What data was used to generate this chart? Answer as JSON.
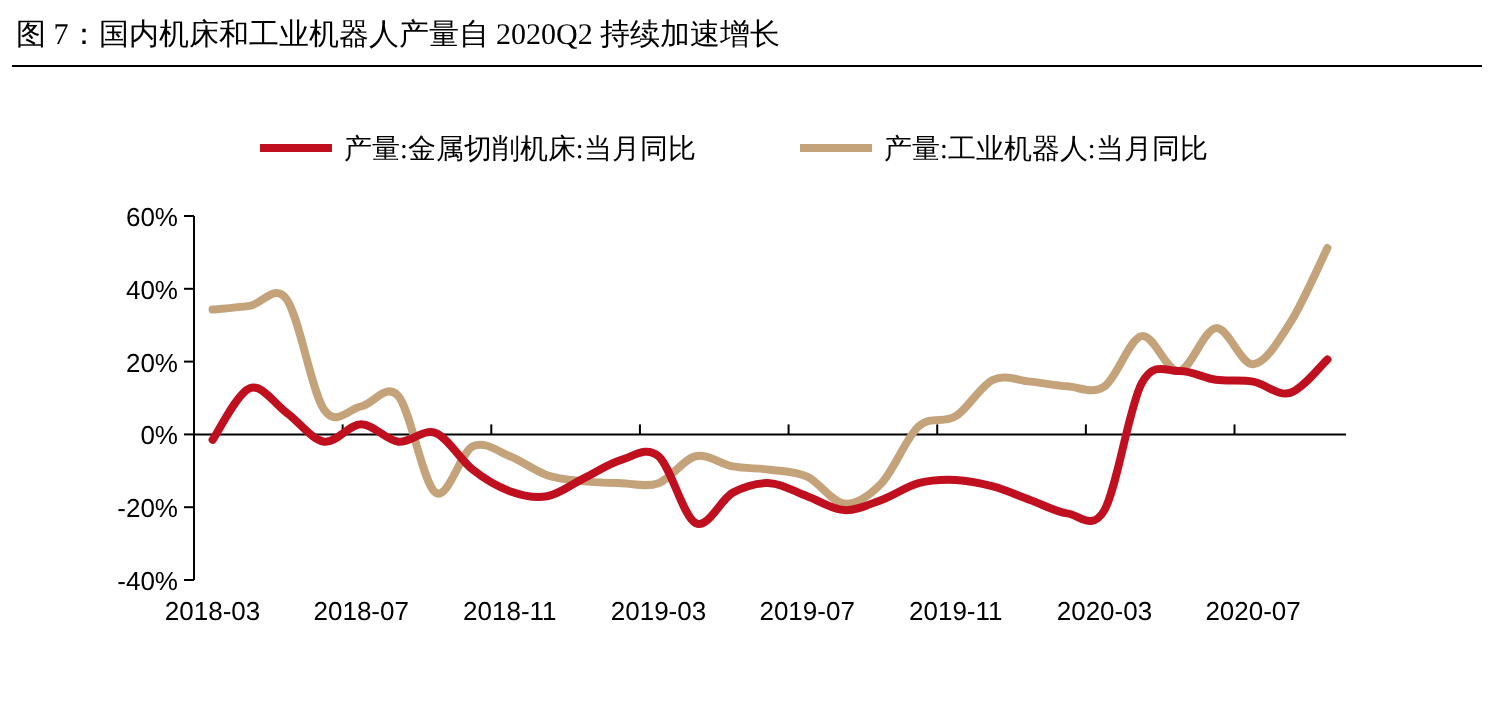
{
  "chart_data": {
    "type": "line",
    "title": "图 7：国内机床和工业机器人产量自 2020Q2 持续加速增长",
    "categories": [
      "2018-03",
      null,
      null,
      null,
      "2018-07",
      null,
      null,
      null,
      "2018-11",
      null,
      null,
      null,
      "2019-03",
      null,
      null,
      null,
      "2019-07",
      null,
      null,
      null,
      "2019-11",
      null,
      null,
      null,
      "2020-03",
      null,
      null,
      null,
      "2020-07",
      null,
      null
    ],
    "series": [
      {
        "name": "产量:金属切削机床:当月同比",
        "color": "#c00f1f",
        "values": [
          -1.5,
          12.7,
          5.9,
          -2,
          2.8,
          -2,
          0.4,
          -9.7,
          -15.6,
          -17,
          -12,
          -7,
          -6,
          -24.4,
          -16,
          -13.4,
          -17,
          -20.8,
          -18,
          -13.4,
          -12.5,
          -14.3,
          -18,
          -21.7,
          -20.8,
          14,
          17.4,
          15,
          14.5,
          11.4,
          20.6
        ]
      },
      {
        "name": "产量:工业机器人:当月同比",
        "color": "#c4a27a",
        "values": [
          34.3,
          35.3,
          37,
          6.8,
          7.7,
          10.5,
          -16,
          -3.3,
          -6,
          -11.2,
          -12.9,
          -13.4,
          -13.4,
          -6,
          -8.8,
          -9.7,
          -11.6,
          -19,
          -13.4,
          2.2,
          5,
          15,
          14.5,
          13.2,
          13.2,
          27,
          17.4,
          29.2,
          19.3,
          30.7,
          51.2
        ]
      }
    ],
    "ylim": [
      -40,
      60
    ],
    "yticks": [
      {
        "value": -40,
        "label": "-40%"
      },
      {
        "value": -20,
        "label": "-20%"
      },
      {
        "value": 0,
        "label": "0%"
      },
      {
        "value": 20,
        "label": "20%"
      },
      {
        "value": 40,
        "label": "40%"
      },
      {
        "value": 60,
        "label": "60%"
      }
    ],
    "legend": "top",
    "marker": "none",
    "line_style": "solid"
  }
}
